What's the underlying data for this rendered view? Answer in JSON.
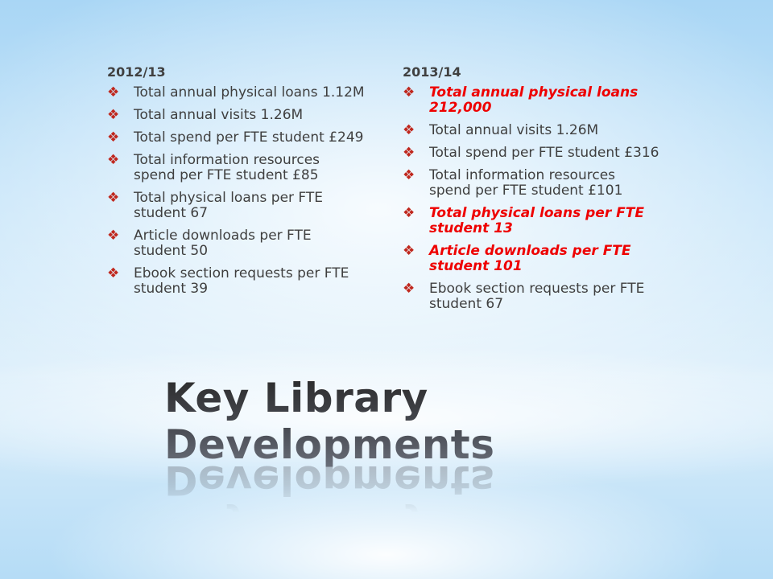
{
  "bullet_icon": "four-diamonds-icon",
  "colors": {
    "bullet": "#c0281e",
    "highlight": "#ee0000",
    "text": "#3f3f3f"
  },
  "left": {
    "heading": "2012/13",
    "items": [
      {
        "text": "Total annual physical loans 1.12M",
        "highlight": false
      },
      {
        "text": "Total annual visits 1.26M",
        "highlight": false
      },
      {
        "text": "Total spend per FTE student £249",
        "highlight": false
      },
      {
        "text": "Total information resources spend per FTE student £85",
        "highlight": false
      },
      {
        "text": "Total physical loans per FTE student 67",
        "highlight": false
      },
      {
        "text": "Article downloads per FTE student 50",
        "highlight": false
      },
      {
        "text": "Ebook section requests per FTE student 39",
        "highlight": false
      }
    ]
  },
  "right": {
    "heading": "2013/14",
    "items": [
      {
        "text": "Total annual physical loans 212,000",
        "highlight": true
      },
      {
        "text": "Total annual visits 1.26M",
        "highlight": false
      },
      {
        "text": "Total spend per FTE student £316",
        "highlight": false
      },
      {
        "text": "Total information resources spend per FTE student £101",
        "highlight": false
      },
      {
        "text": "Total physical loans per FTE student 13",
        "highlight": true
      },
      {
        "text": "Article downloads per FTE student 101",
        "highlight": true
      },
      {
        "text": "Ebook section requests per FTE student 67",
        "highlight": false
      }
    ]
  },
  "title": "Key Library Developments"
}
